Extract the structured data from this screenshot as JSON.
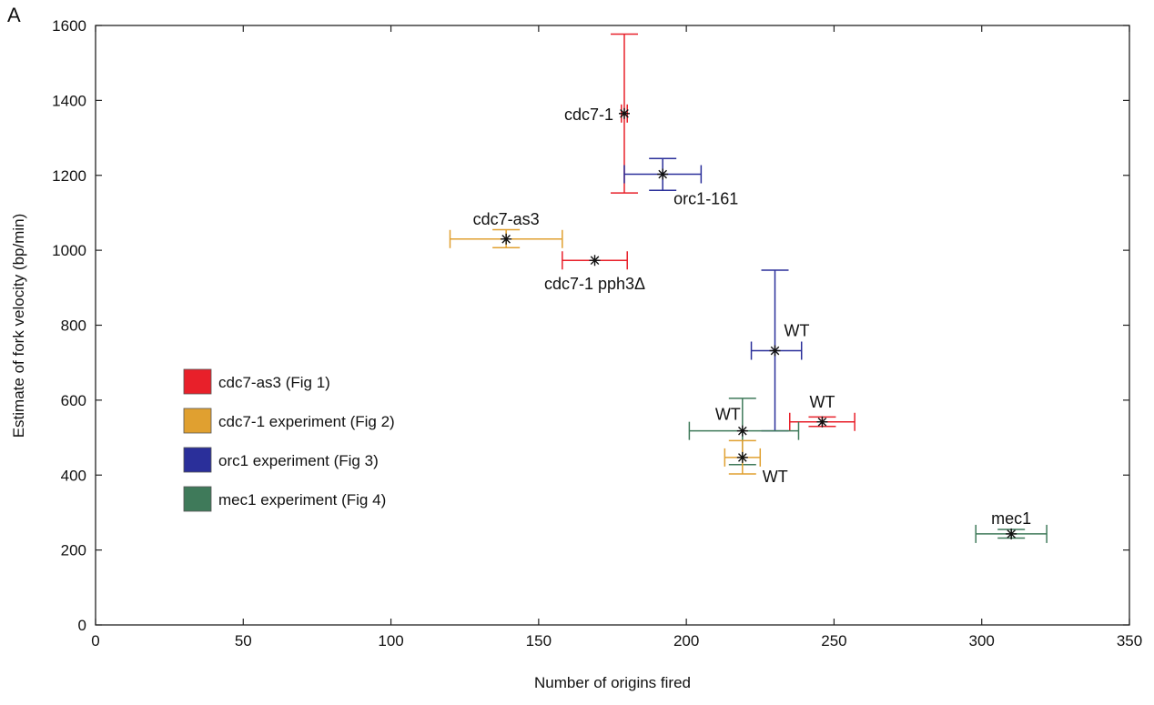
{
  "panel_label": "A",
  "chart_data": {
    "type": "scatter",
    "xlabel": "Number of origins fired",
    "ylabel": "Estimate of fork velocity (bp/min)",
    "xlim": [
      0,
      350
    ],
    "ylim": [
      0,
      1600
    ],
    "xticks": [
      0,
      50,
      100,
      150,
      200,
      250,
      300,
      350
    ],
    "yticks": [
      0,
      200,
      400,
      600,
      800,
      1000,
      1200,
      1400,
      1600
    ],
    "grid": false,
    "legend_position": "left",
    "legend": [
      {
        "label": "cdc7-as3 (Fig 1)",
        "color": "#e8202a"
      },
      {
        "label": "cdc7-1 experiment (Fig 2)",
        "color": "#e0a030"
      },
      {
        "label": "orc1 experiment (Fig 3)",
        "color": "#2a2f9a"
      },
      {
        "label": "mec1 experiment (Fig 4)",
        "color": "#3f7a5a"
      }
    ],
    "marker": "asterisk",
    "points": [
      {
        "label": "cdc7-1",
        "x": 179,
        "y": 1365,
        "color": "#e8202a",
        "xerr": [
          178,
          180
        ],
        "yerr": [
          1153,
          1577
        ],
        "label_pos": "left"
      },
      {
        "label": "orc1-161",
        "x": 192,
        "y": 1203,
        "color": "#2a2f9a",
        "xerr": [
          179,
          205
        ],
        "yerr": [
          1160,
          1245
        ],
        "label_pos": "below-right"
      },
      {
        "label": "cdc7-as3",
        "x": 139,
        "y": 1030,
        "color": "#e0a030",
        "xerr": [
          120,
          158
        ],
        "yerr": [
          1007,
          1055
        ],
        "label_pos": "above"
      },
      {
        "label": "cdc7-1 pph3Δ",
        "x": 169,
        "y": 973,
        "color": "#e8202a",
        "xerr": [
          158,
          180
        ],
        "yerr": [
          973,
          973
        ],
        "label_pos": "below"
      },
      {
        "label": "WT",
        "x": 230,
        "y": 732,
        "color": "#2a2f9a",
        "xerr": [
          222,
          239
        ],
        "yerr": [
          518,
          947
        ],
        "label_pos": "above-right"
      },
      {
        "label": "WT",
        "x": 246,
        "y": 542,
        "color": "#e8202a",
        "xerr": [
          235,
          257
        ],
        "yerr": [
          530,
          555
        ],
        "label_pos": "above"
      },
      {
        "label": "WT",
        "x": 219,
        "y": 518,
        "color": "#3f7a5a",
        "xerr": [
          201,
          238
        ],
        "yerr": [
          428,
          605
        ],
        "label_pos": "above-left"
      },
      {
        "label": "WT",
        "x": 219,
        "y": 447,
        "color": "#e0a030",
        "xerr": [
          213,
          225
        ],
        "yerr": [
          403,
          492
        ],
        "label_pos": "below-right"
      },
      {
        "label": "mec1",
        "x": 310,
        "y": 243,
        "color": "#3f7a5a",
        "xerr": [
          298,
          322
        ],
        "yerr": [
          232,
          255
        ],
        "label_pos": "above"
      }
    ]
  }
}
